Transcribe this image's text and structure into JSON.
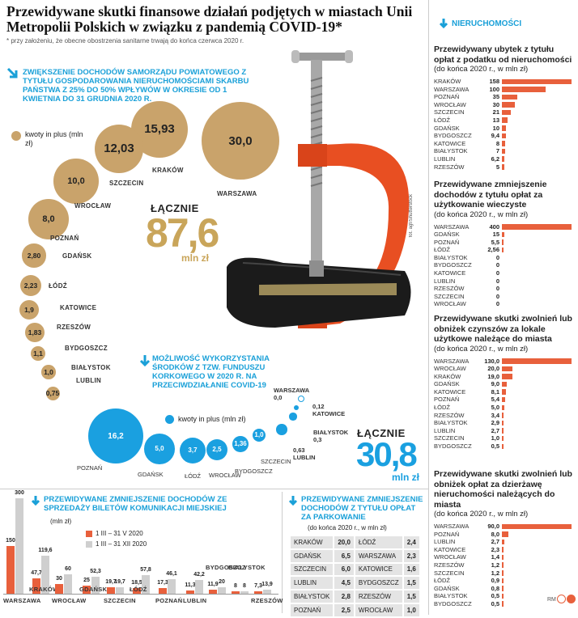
{
  "title": "Przewidywane skutki finansowe działań podjętych w miastach Unii Metropolii Polskich w związku z pandemią COVID-19*",
  "footnote": "* przy założeniu, że obecne obostrzenia sanitarne trwają do końca czerwca 2020 r.",
  "colors": {
    "gold": "#c9a36b",
    "blue": "#1aa0e0",
    "red": "#e8603c",
    "grey": "#cfcfcf"
  },
  "section1": {
    "heading": "ZWIĘKSZENIE DOCHODÓW SAMORZĄDU POWIATOWEGO Z TYTUŁU GOSPODAROWANIA NIERUCHOMOŚCIAMI SKARBU PAŃSTWA Z 25% DO 50% WPŁYWÓW W OKRESIE OD 1 KWIETNIA DO 31 GRUDNIA 2020 R.",
    "legend": "kwoty in plus (mln zł)",
    "total_label": "ŁĄCZNIE",
    "total_value": "87,6",
    "total_unit": "mln zł"
  },
  "section2": {
    "heading": "MOŻLIWOŚĆ WYKORZYSTANIA ŚRODKÓW Z TZW. FUNDUSZU KORKOWEGO W 2020 R. NA PRZECIWDZIAŁANIE COVID-19",
    "legend": "kwoty in plus (mln zł)",
    "total_label": "ŁĄCZNIE",
    "total_value": "30,8",
    "total_unit": "mln zł"
  },
  "photo_credit": "fot. agf/Shutterstock",
  "right_title": "NIERUCHOMOŚCI",
  "footer_credit": "RM",
  "chart_data": [
    {
      "type": "bubble",
      "id": "powiat",
      "categories": [
        "WARSZAWA",
        "KRAKÓW",
        "SZCZECIN",
        "WROCŁAW",
        "POZNAŃ",
        "GDAŃSK",
        "ŁÓDŹ",
        "KATOWICE",
        "RZESZÓW",
        "BYDGOSZCZ",
        "BIAŁYSTOK",
        "LUBLIN"
      ],
      "values": [
        30.0,
        15.93,
        12.03,
        10.0,
        8.0,
        2.8,
        2.23,
        1.9,
        1.83,
        1.1,
        1.0,
        0.75
      ],
      "labels": [
        "30,0",
        "15,93",
        "12,03",
        "10,0",
        "8,0",
        "2,80",
        "2,23",
        "1,9",
        "1,83",
        "1,1",
        "1,0",
        "0,75"
      ]
    },
    {
      "type": "bubble",
      "id": "korkowe",
      "categories": [
        "POZNAŃ",
        "GDAŃSK",
        "ŁÓDŹ",
        "WROCŁAW",
        "BYDGOSZCZ",
        "SZCZECIN",
        "LUBLIN",
        "BIAŁYSTOK",
        "KATOWICE",
        "WARSZAWA"
      ],
      "values": [
        16.2,
        5.0,
        3.7,
        2.5,
        1.36,
        1.0,
        0.63,
        0.3,
        0.12,
        0.0
      ],
      "labels": [
        "16,2",
        "5,0",
        "3,7",
        "2,5",
        "1,36",
        "1,0",
        "0,63",
        "0,3",
        "0,12",
        "0,0"
      ]
    },
    {
      "type": "bar",
      "id": "nieruchomosci",
      "title": "Przewidywany ubytek z tytułu opłat z podatku od nieruchomości",
      "subtitle": "(do końca 2020 r., w mln zł)",
      "categories": [
        "KRAKÓW",
        "WARSZAWA",
        "POZNAŃ",
        "WROCŁAW",
        "SZCZECIN",
        "ŁÓDŹ",
        "GDAŃSK",
        "BYDGOSZCZ",
        "KATOWICE",
        "BIAŁYSTOK",
        "LUBLIN",
        "RZESZÓW"
      ],
      "values": [
        158,
        100,
        35,
        30,
        21,
        13,
        10,
        9.4,
        8,
        7,
        6.2,
        5
      ],
      "labels": [
        "158",
        "100",
        "35",
        "30",
        "21",
        "13",
        "10",
        "9,4",
        "8",
        "7",
        "6,2",
        "5"
      ]
    },
    {
      "type": "bar",
      "id": "wieczyste",
      "title": "Przewidywane zmniejszenie dochodów z tytułu opłat za użytkowanie wieczyste",
      "subtitle": "(do końca 2020 r., w mln zł)",
      "categories": [
        "WARSZAWA",
        "GDAŃSK",
        "POZNAŃ",
        "ŁÓDŹ",
        "BIAŁYSTOK",
        "BYDGOSZCZ",
        "KATOWICE",
        "LUBLIN",
        "RZESZÓW",
        "SZCZECIN",
        "WROCŁAW"
      ],
      "values": [
        400,
        15,
        5.5,
        2.56,
        0,
        0,
        0,
        0,
        0,
        0,
        0
      ],
      "labels": [
        "400",
        "15",
        "5,5",
        "2,56",
        "0",
        "0",
        "0",
        "0",
        "0",
        "0",
        "0"
      ]
    },
    {
      "type": "bar",
      "id": "czynsze",
      "title": "Przewidywane skutki zwolnień lub obniżek czynszów za lokale użytkowe należące do miasta",
      "subtitle": "(do końca 2020 r., w mln zł)",
      "categories": [
        "WARSZAWA",
        "WROCŁAW",
        "KRAKÓW",
        "GDAŃSK",
        "KATOWICE",
        "POZNAŃ",
        "ŁÓDŹ",
        "RZESZÓW",
        "BIAŁYSTOK",
        "LUBLIN",
        "SZCZECIN",
        "BYDGOSZCZ"
      ],
      "values": [
        130.0,
        20.0,
        19.0,
        9.0,
        8.1,
        5.4,
        5.0,
        3.4,
        2.9,
        2.7,
        1.0,
        0.5
      ],
      "labels": [
        "130,0",
        "20,0",
        "19,0",
        "9,0",
        "8,1",
        "5,4",
        "5,0",
        "3,4",
        "2,9",
        "2,7",
        "1,0",
        "0,5"
      ]
    },
    {
      "type": "bar",
      "id": "dzierzawa",
      "title": "Przewidywane skutki zwolnień lub obniżek opłat za dzierżawę nieruchomości należących do miasta",
      "subtitle": "(do końca 2020 r., w mln zł)",
      "categories": [
        "WARSZAWA",
        "POZNAŃ",
        "LUBLIN",
        "KATOWICE",
        "WROCŁAW",
        "RZESZÓW",
        "SZCZECIN",
        "ŁÓDŹ",
        "GDAŃSK",
        "BIAŁYSTOK",
        "BYDGOSZCZ"
      ],
      "values": [
        90.0,
        8.0,
        2.7,
        2.3,
        1.4,
        1.2,
        1.2,
        0.9,
        0.8,
        0.5,
        0.5
      ],
      "labels": [
        "90,0",
        "8,0",
        "2,7",
        "2,3",
        "1,4",
        "1,2",
        "1,2",
        "0,9",
        "0,8",
        "0,5",
        "0,5"
      ]
    },
    {
      "type": "bar",
      "id": "bilety",
      "title": "PRZEWIDYWANE ZMNIEJSZENIE DOCHODÓW ZE SPRZEDAŻY BILETÓW KOMUNIKACJI MIEJSKIEJ",
      "ylabel": "(mln zł)",
      "categories": [
        "WARSZAWA",
        "KRAKÓW",
        "WROCŁAW",
        "GDAŃSK",
        "SZCZECIN",
        "ŁÓDŹ",
        "POZNAŃ",
        "LUBLIN",
        "BYDGOSZCZ",
        "BIAŁYSTOK",
        "RZESZÓW"
      ],
      "series": [
        {
          "name": "1 III – 31 V 2020",
          "values": [
            150,
            47.7,
            30,
            25,
            19.7,
            18.5,
            17.3,
            11.3,
            11.9,
            8,
            7.3
          ],
          "labels": [
            "150",
            "47,7",
            "30",
            "25",
            "19,7",
            "18,5",
            "17,3",
            "11,3",
            "11,9",
            "8",
            "7,3"
          ]
        },
        {
          "name": "1 III – 31 XII 2020",
          "values": [
            300,
            119.6,
            60,
            52.3,
            19.7,
            57.8,
            46.1,
            42.2,
            20,
            8,
            13.9
          ],
          "labels": [
            "300",
            "119,6",
            "60",
            "52,3",
            "19,7",
            "57,8",
            "46,1",
            "42,2",
            "20",
            "8",
            "13,9"
          ]
        }
      ]
    },
    {
      "type": "table",
      "id": "parkowanie",
      "title": "PRZEWIDYWANE ZMNIEJSZENIE DOCHODÓW Z TYTUŁU OPŁAT ZA PARKOWANIE",
      "subtitle": "(do końca 2020 r., w mln zł)",
      "rows": [
        [
          "KRAKÓW",
          "20,0",
          "ŁÓDŹ",
          "2,4"
        ],
        [
          "GDAŃSK",
          "6,5",
          "WARSZAWA",
          "2,3"
        ],
        [
          "SZCZECIN",
          "6,0",
          "KATOWICE",
          "1,6"
        ],
        [
          "LUBLIN",
          "4,5",
          "BYDGOSZCZ",
          "1,5"
        ],
        [
          "BIAŁYSTOK",
          "2,8",
          "RZESZÓW",
          "1,5"
        ],
        [
          "POZNAŃ",
          "2,5",
          "WROCŁAW",
          "1,0"
        ]
      ]
    }
  ]
}
